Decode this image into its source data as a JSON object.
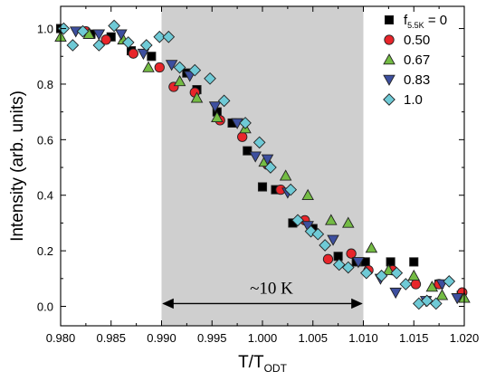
{
  "chart_data": {
    "type": "scatter",
    "title": "",
    "xlabel": "T/T",
    "xlabel_subscript": "ODT",
    "ylabel": "Intensity (arb. units)",
    "xlim": [
      0.98,
      1.02
    ],
    "ylim": [
      -0.07,
      1.08
    ],
    "xticks": [
      "0.980",
      "0.985",
      "0.990",
      "0.995",
      "1.000",
      "1.005",
      "1.010",
      "1.015",
      "1.020"
    ],
    "xtick_values": [
      0.98,
      0.985,
      0.99,
      0.995,
      1.0,
      1.005,
      1.01,
      1.015,
      1.02
    ],
    "yticks": [
      "0.0",
      "0.2",
      "0.4",
      "0.6",
      "0.8",
      "1.0"
    ],
    "ytick_values": [
      0.0,
      0.2,
      0.4,
      0.6,
      0.8,
      1.0
    ],
    "grid": false,
    "legend_position": "top-right",
    "legend_header_prefix": "f",
    "legend_header_subscript": "5.5K",
    "legend_header_suffix": " = 0",
    "shaded_region": {
      "x": [
        0.99,
        1.01
      ],
      "color": "#cfcfcf"
    },
    "annotation": {
      "text": "~10 K",
      "x_start": 0.99,
      "x_end": 1.01,
      "y": 0.01
    },
    "series": [
      {
        "name": "0",
        "marker": "square",
        "color": "#000000",
        "x": [
          0.98,
          0.983,
          0.985,
          0.987,
          0.989,
          0.9925,
          0.9935,
          0.9955,
          0.997,
          0.9985,
          1.0,
          1.0013,
          1.003,
          1.005,
          1.0075,
          1.0093,
          1.0102,
          1.0127,
          1.015,
          1.0175,
          1.0197
        ],
        "y": [
          1.0,
          0.98,
          0.97,
          0.92,
          0.9,
          0.84,
          0.78,
          0.7,
          0.66,
          0.56,
          0.43,
          0.42,
          0.3,
          0.28,
          0.18,
          0.16,
          0.16,
          0.16,
          0.16,
          0.08,
          0.04
        ]
      },
      {
        "name": "0.50",
        "marker": "circle",
        "color": "#e8252a",
        "x": [
          0.9825,
          0.9845,
          0.9872,
          0.9898,
          0.9912,
          0.9933,
          0.9958,
          0.998,
          1.0005,
          1.0018,
          1.0042,
          1.0065,
          1.0088,
          1.0105,
          1.0129,
          1.0152,
          1.0175,
          1.0198
        ],
        "y": [
          0.99,
          0.96,
          0.91,
          0.86,
          0.79,
          0.77,
          0.67,
          0.61,
          0.51,
          0.42,
          0.31,
          0.17,
          0.19,
          0.13,
          0.13,
          0.08,
          0.08,
          0.05
        ]
      },
      {
        "name": "0.67",
        "marker": "triangle-up",
        "color": "#74bc44",
        "x": [
          0.98,
          0.9828,
          0.9862,
          0.9887,
          0.9918,
          0.9935,
          0.9955,
          0.9983,
          1.0002,
          1.0023,
          1.0045,
          1.0068,
          1.0085,
          1.0108,
          1.0125,
          1.015,
          1.0168,
          1.0178,
          1.02
        ],
        "y": [
          0.97,
          0.98,
          0.96,
          0.86,
          0.81,
          0.75,
          0.68,
          0.64,
          0.52,
          0.47,
          0.4,
          0.31,
          0.3,
          0.21,
          0.13,
          0.11,
          0.07,
          0.04,
          0.03
        ]
      },
      {
        "name": "0.83",
        "marker": "triangle-down",
        "color": "#3d4f9f",
        "x": [
          0.9815,
          0.9838,
          0.986,
          0.9882,
          0.991,
          0.9928,
          0.9953,
          0.9975,
          0.9993,
          1.0005,
          1.0025,
          1.0045,
          1.007,
          1.0095,
          1.0117,
          1.0132,
          1.0162,
          1.0178,
          1.0193
        ],
        "y": [
          0.99,
          0.98,
          0.98,
          0.91,
          0.87,
          0.83,
          0.72,
          0.66,
          0.54,
          0.53,
          0.41,
          0.29,
          0.24,
          0.16,
          0.1,
          0.05,
          0.02,
          0.08,
          0.03
        ]
      },
      {
        "name": "1.0",
        "marker": "diamond",
        "color": "#6fcad6",
        "x": [
          0.9803,
          0.9812,
          0.9822,
          0.9838,
          0.9853,
          0.9867,
          0.9885,
          0.9898,
          0.9907,
          0.9918,
          0.9933,
          0.9948,
          0.9962,
          0.9983,
          0.9997,
          1.0008,
          1.0028,
          1.0035,
          1.0048,
          1.0055,
          1.0062,
          1.0076,
          1.0085,
          1.0103,
          1.0118,
          1.0133,
          1.0142,
          1.0155,
          1.0163,
          1.0172,
          1.0185
        ],
        "y": [
          1.0,
          0.94,
          0.99,
          0.94,
          1.01,
          0.95,
          0.94,
          0.97,
          0.97,
          0.86,
          0.85,
          0.82,
          0.74,
          0.66,
          0.59,
          0.5,
          0.42,
          0.31,
          0.27,
          0.26,
          0.22,
          0.15,
          0.14,
          0.12,
          0.11,
          0.12,
          0.08,
          0.01,
          0.02,
          0.01,
          0.09
        ]
      }
    ]
  }
}
